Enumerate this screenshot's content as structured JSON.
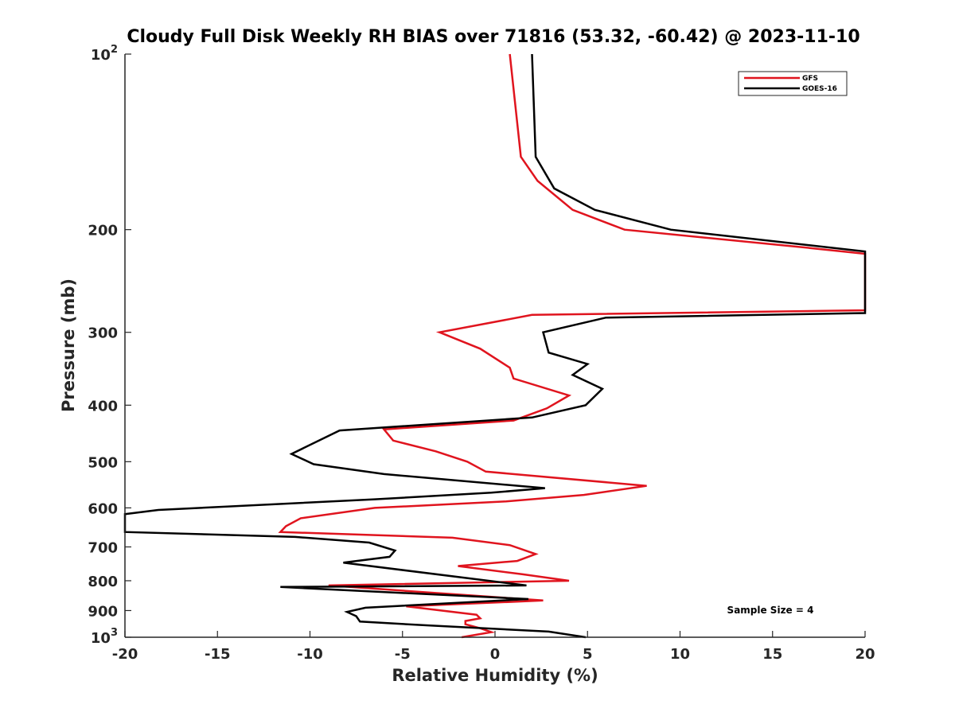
{
  "chart_data": {
    "type": "line",
    "title": "Cloudy Full Disk Weekly RH BIAS over 71816 (53.32, -60.42) @ 2023-11-10",
    "xlabel": "Relative Humidity (%)",
    "ylabel": "Pressure (mb)",
    "xlim": [
      -20,
      20
    ],
    "ylim": [
      100,
      1000
    ],
    "y_scale": "log",
    "y_reversed": true,
    "grid": false,
    "x_ticks": [
      -20,
      -15,
      -10,
      -5,
      0,
      5,
      10,
      15,
      20
    ],
    "x_tick_labels": [
      "-20",
      "-15",
      "-10",
      "-5",
      "0",
      "5",
      "10",
      "15",
      "20"
    ],
    "y_ticks": [
      100,
      200,
      300,
      400,
      500,
      600,
      700,
      800,
      900,
      1000
    ],
    "y_tick_labels": [
      {
        "base": "10",
        "exp": "2"
      },
      {
        "base": "200",
        "exp": ""
      },
      {
        "base": "300",
        "exp": ""
      },
      {
        "base": "400",
        "exp": ""
      },
      {
        "base": "500",
        "exp": ""
      },
      {
        "base": "600",
        "exp": ""
      },
      {
        "base": "700",
        "exp": ""
      },
      {
        "base": "800",
        "exp": ""
      },
      {
        "base": "900",
        "exp": ""
      },
      {
        "base": "10",
        "exp": "3"
      }
    ],
    "legend_position": "top-right",
    "annotation": "Sample Size = 4",
    "series": [
      {
        "name": "GFS",
        "color": "#e0141e",
        "points": [
          [
            0.8,
            100
          ],
          [
            1.4,
            150
          ],
          [
            2.3,
            165
          ],
          [
            4.2,
            185
          ],
          [
            7.0,
            200
          ],
          [
            17.0,
            215
          ],
          [
            20,
            220
          ],
          [
            20,
            275
          ],
          [
            2.0,
            280
          ],
          [
            -3.0,
            300
          ],
          [
            -0.8,
            320
          ],
          [
            0.8,
            345
          ],
          [
            1.0,
            360
          ],
          [
            4.0,
            385
          ],
          [
            2.8,
            405
          ],
          [
            1.0,
            425
          ],
          [
            -6.0,
            440
          ],
          [
            -5.5,
            460
          ],
          [
            -3.2,
            480
          ],
          [
            -1.5,
            500
          ],
          [
            -0.5,
            520
          ],
          [
            8.2,
            550
          ],
          [
            4.8,
            570
          ],
          [
            0.6,
            585
          ],
          [
            -6.5,
            600
          ],
          [
            -10.5,
            625
          ],
          [
            -11.3,
            645
          ],
          [
            -11.6,
            660
          ],
          [
            -2.3,
            675
          ],
          [
            0.8,
            695
          ],
          [
            2.2,
            720
          ],
          [
            1.2,
            740
          ],
          [
            -2.0,
            755
          ],
          [
            1.5,
            780
          ],
          [
            4.0,
            800
          ],
          [
            -9.0,
            815
          ],
          [
            2.6,
            865
          ],
          [
            -4.8,
            885
          ],
          [
            -1.0,
            915
          ],
          [
            -0.8,
            928
          ],
          [
            -1.6,
            938
          ],
          [
            -1.6,
            950
          ],
          [
            -0.8,
            965
          ],
          [
            -0.2,
            980
          ],
          [
            -1.8,
            1000
          ]
        ]
      },
      {
        "name": "GOES-16",
        "color": "#000000",
        "points": [
          [
            2.0,
            100
          ],
          [
            2.2,
            150
          ],
          [
            3.2,
            170
          ],
          [
            5.4,
            185
          ],
          [
            9.5,
            200
          ],
          [
            20,
            218
          ],
          [
            20,
            278
          ],
          [
            6.0,
            283
          ],
          [
            2.6,
            300
          ],
          [
            2.9,
            325
          ],
          [
            5.0,
            340
          ],
          [
            4.2,
            355
          ],
          [
            5.8,
            375
          ],
          [
            4.9,
            400
          ],
          [
            2.0,
            420
          ],
          [
            -8.4,
            442
          ],
          [
            -11.0,
            485
          ],
          [
            -9.8,
            505
          ],
          [
            -6.0,
            525
          ],
          [
            2.7,
            555
          ],
          [
            -0.2,
            565
          ],
          [
            -6.5,
            580
          ],
          [
            -18.2,
            605
          ],
          [
            -20,
            615
          ],
          [
            -20,
            660
          ],
          [
            -10.8,
            673
          ],
          [
            -6.8,
            688
          ],
          [
            -5.4,
            710
          ],
          [
            -5.7,
            728
          ],
          [
            -8.2,
            745
          ],
          [
            1.7,
            815
          ],
          [
            -11.6,
            820
          ],
          [
            1.8,
            860
          ],
          [
            -7.0,
            890
          ],
          [
            -8.0,
            905
          ],
          [
            -7.5,
            920
          ],
          [
            -7.3,
            940
          ],
          [
            -3.5,
            955
          ],
          [
            2.9,
            978
          ],
          [
            4.9,
            1000
          ]
        ]
      }
    ]
  }
}
